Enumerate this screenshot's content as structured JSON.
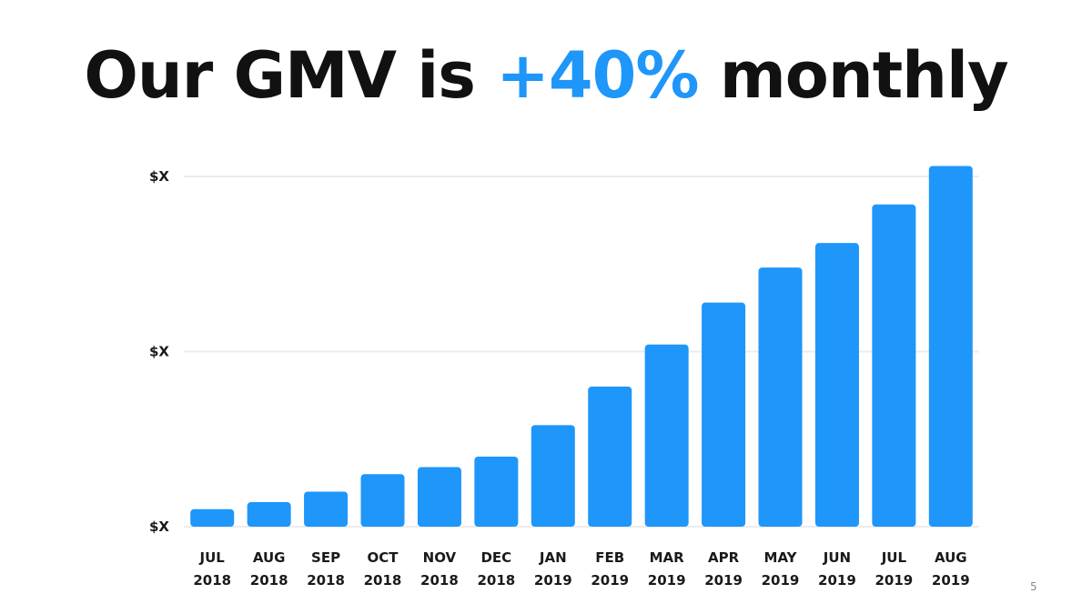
{
  "slide": {
    "title_prefix": "Our GMV is ",
    "title_accent": "+40%",
    "title_suffix": " monthly",
    "page_number": "5"
  },
  "colors": {
    "bar": "#1e96fa",
    "accent": "#1e96fa",
    "title": "#111111",
    "grid": "#ececec"
  },
  "chart_data": {
    "type": "bar",
    "title": "Our GMV is +40% monthly",
    "xlabel": "",
    "ylabel": "",
    "categories": [
      [
        "JUL",
        "2018"
      ],
      [
        "AUG",
        "2018"
      ],
      [
        "SEP",
        "2018"
      ],
      [
        "OCT",
        "2018"
      ],
      [
        "NOV",
        "2018"
      ],
      [
        "DEC",
        "2018"
      ],
      [
        "JAN",
        "2019"
      ],
      [
        "FEB",
        "2019"
      ],
      [
        "MAR",
        "2019"
      ],
      [
        "APR",
        "2019"
      ],
      [
        "MAY",
        "2019"
      ],
      [
        "JUN",
        "2019"
      ],
      [
        "JUL",
        "2019"
      ],
      [
        "AUG",
        "2019"
      ]
    ],
    "values": [
      5,
      7,
      10,
      15,
      17,
      20,
      29,
      40,
      52,
      64,
      74,
      81,
      92,
      103
    ],
    "ylim": [
      0,
      100
    ],
    "yticks": [
      {
        "value": 0,
        "label": "$X"
      },
      {
        "value": 50,
        "label": "$X"
      },
      {
        "value": 100,
        "label": "$X"
      }
    ],
    "grid": true,
    "legend": "none"
  }
}
